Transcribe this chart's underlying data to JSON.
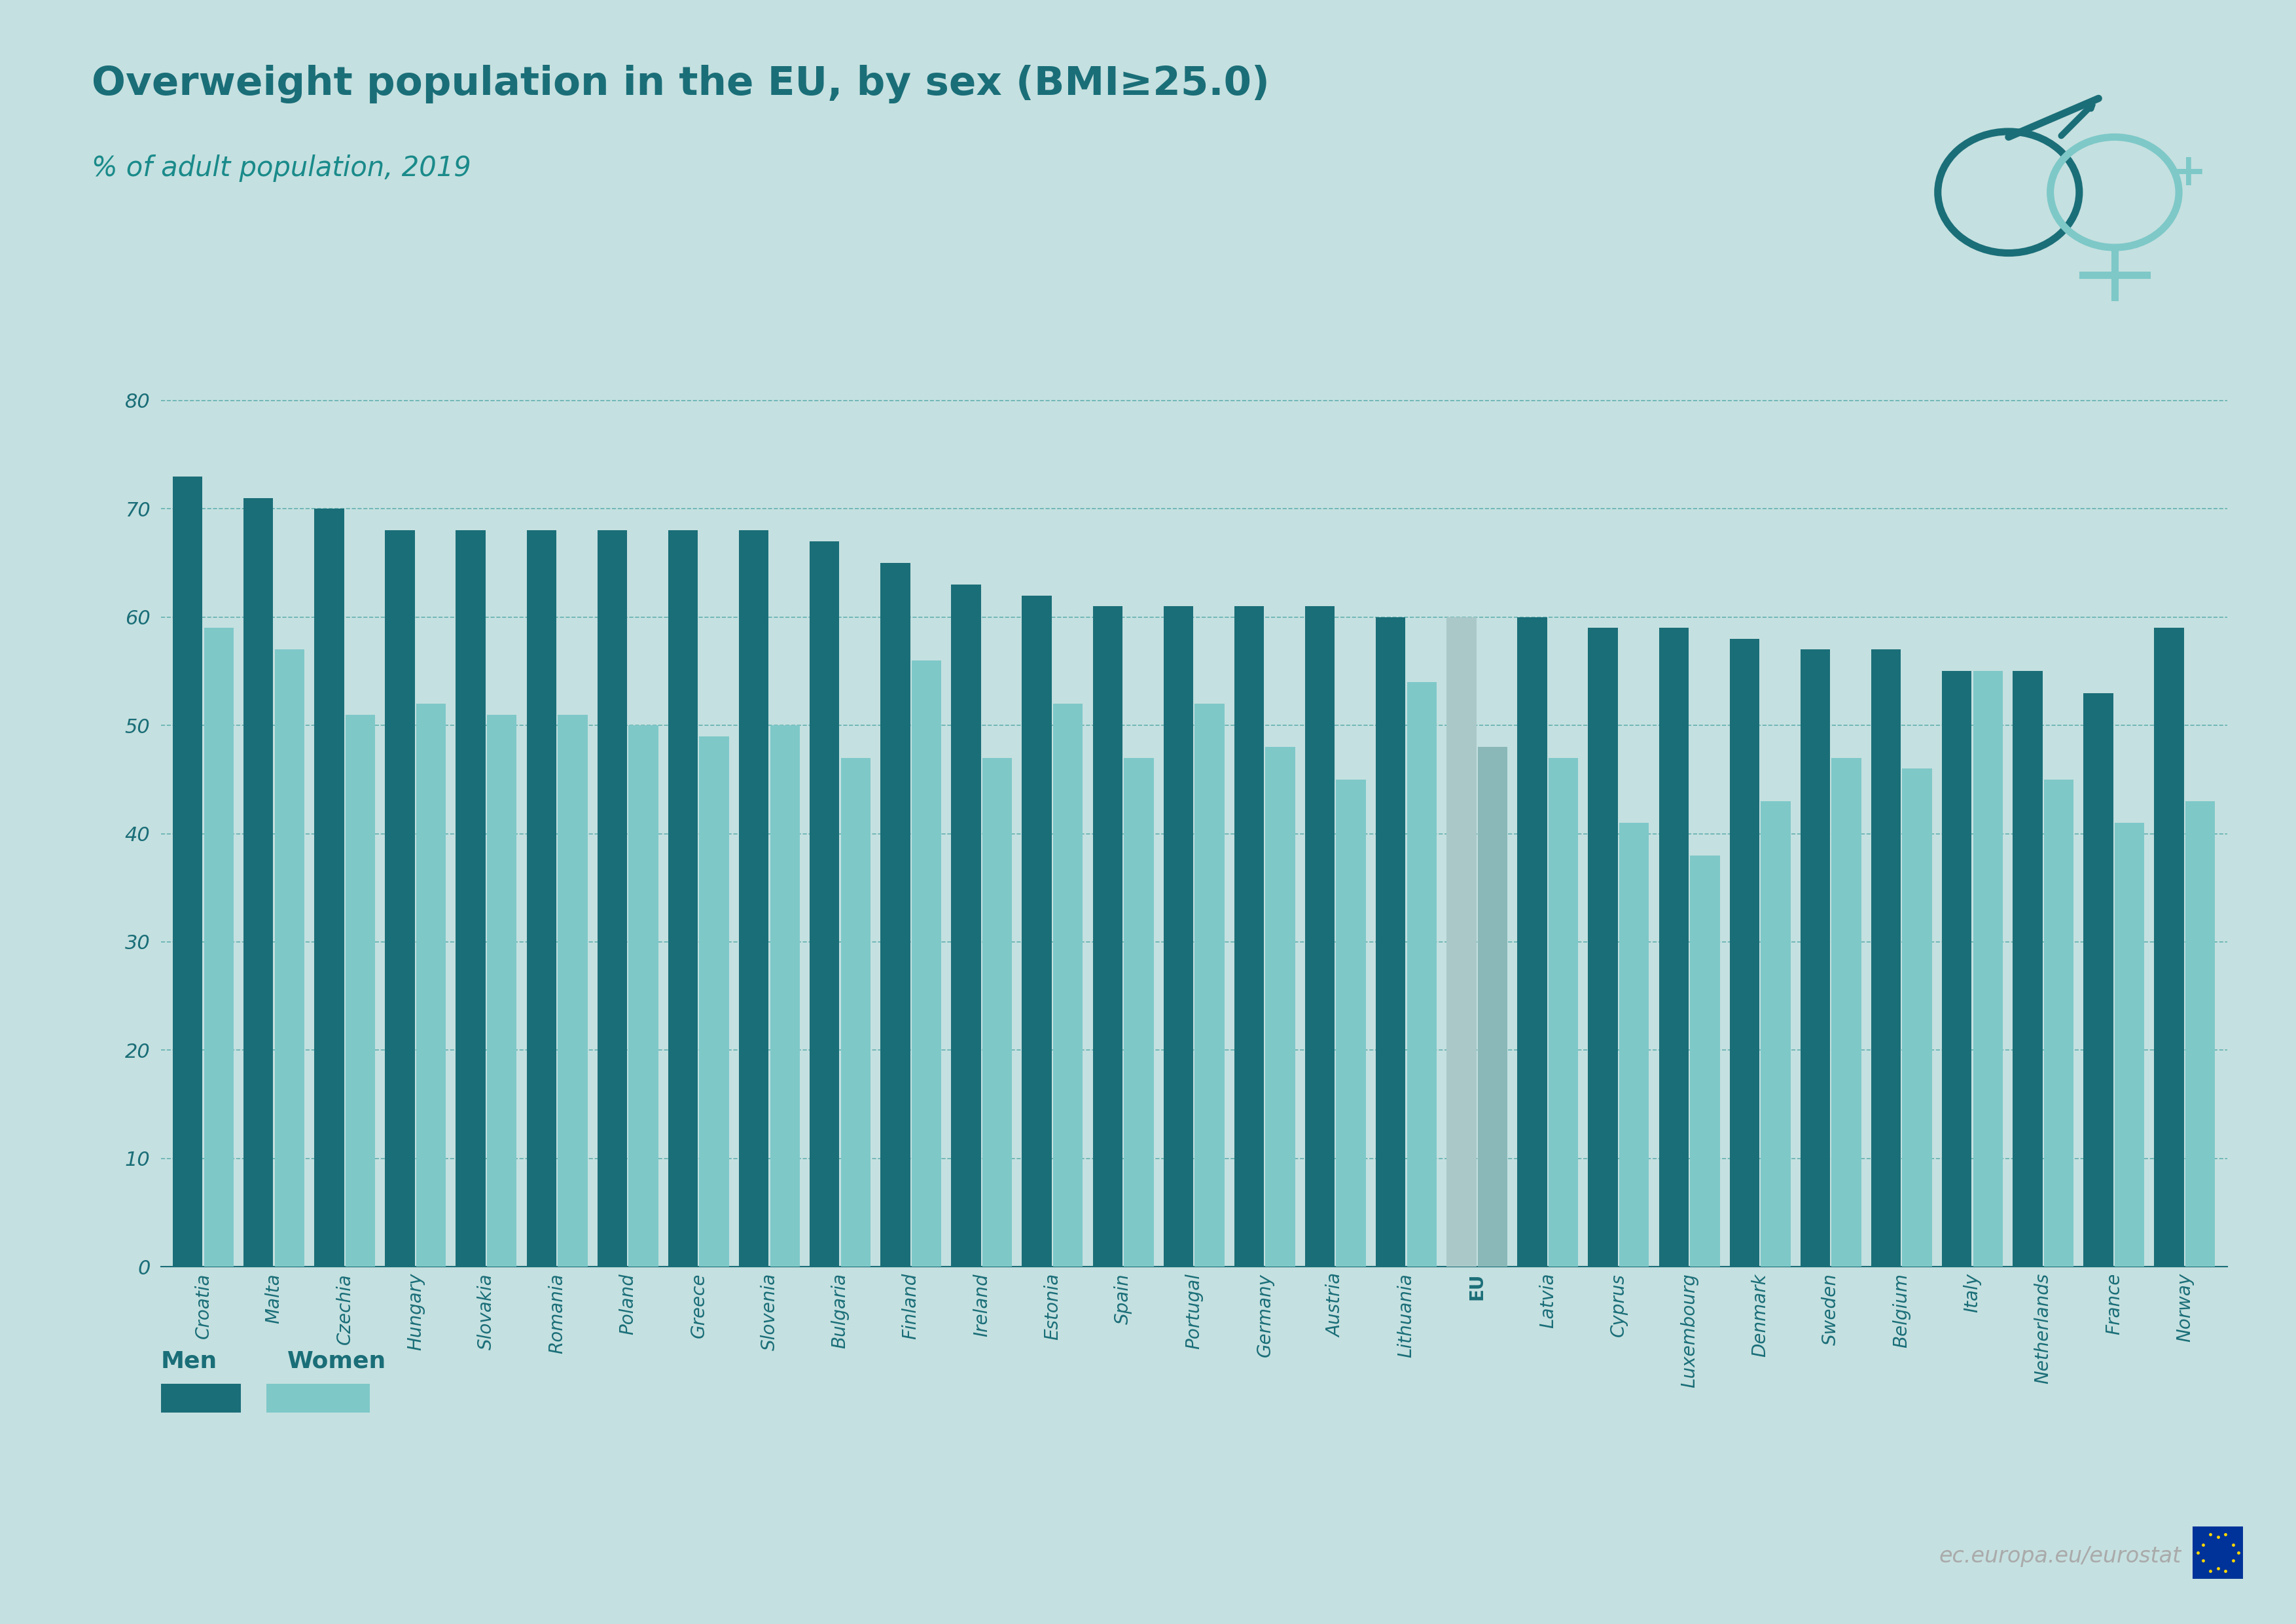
{
  "title": "Overweight population in the EU, by sex (BMI≥25.0)",
  "subtitle": "% of adult population, 2019",
  "bg_outer": "#c5e0e0",
  "bg_plot": "#ffffff",
  "men_color": "#1a6e78",
  "women_color": "#7ec8c8",
  "eu_men_color": "#aac8c8",
  "eu_women_color": "#8ab8b8",
  "title_color": "#1a6e78",
  "subtitle_color": "#1a8a8a",
  "grid_color": "#5aabab",
  "axis_color": "#1a6e78",
  "watermark_color": "#aaaaaa",
  "countries": [
    "Croatia",
    "Malta",
    "Czechia",
    "Hungary",
    "Slovakia",
    "Romania",
    "Poland",
    "Greece",
    "Slovenia",
    "Bulgaria",
    "Finland",
    "Ireland",
    "Estonia",
    "Spain",
    "Portugal",
    "Germany",
    "Austria",
    "Lithuania",
    "EU",
    "Latvia",
    "Cyprus",
    "Luxembourg",
    "Denmark",
    "Sweden",
    "Belgium",
    "Italy",
    "Netherlands",
    "France",
    "Norway"
  ],
  "men_values": [
    73,
    71,
    70,
    68,
    68,
    68,
    68,
    68,
    68,
    67,
    65,
    63,
    62,
    61,
    61,
    61,
    61,
    60,
    60,
    60,
    59,
    59,
    58,
    57,
    57,
    55,
    55,
    53,
    59
  ],
  "women_values": [
    59,
    57,
    51,
    52,
    51,
    51,
    50,
    49,
    50,
    47,
    56,
    47,
    52,
    47,
    52,
    48,
    45,
    54,
    48,
    47,
    41,
    38,
    43,
    47,
    46,
    55,
    45,
    41,
    43
  ],
  "ylim": [
    0,
    84
  ],
  "yticks": [
    0,
    10,
    20,
    30,
    40,
    50,
    60,
    70,
    80
  ],
  "legend_labels": [
    "Men",
    "Women"
  ],
  "watermark": "ec.europa.eu/eurostat"
}
